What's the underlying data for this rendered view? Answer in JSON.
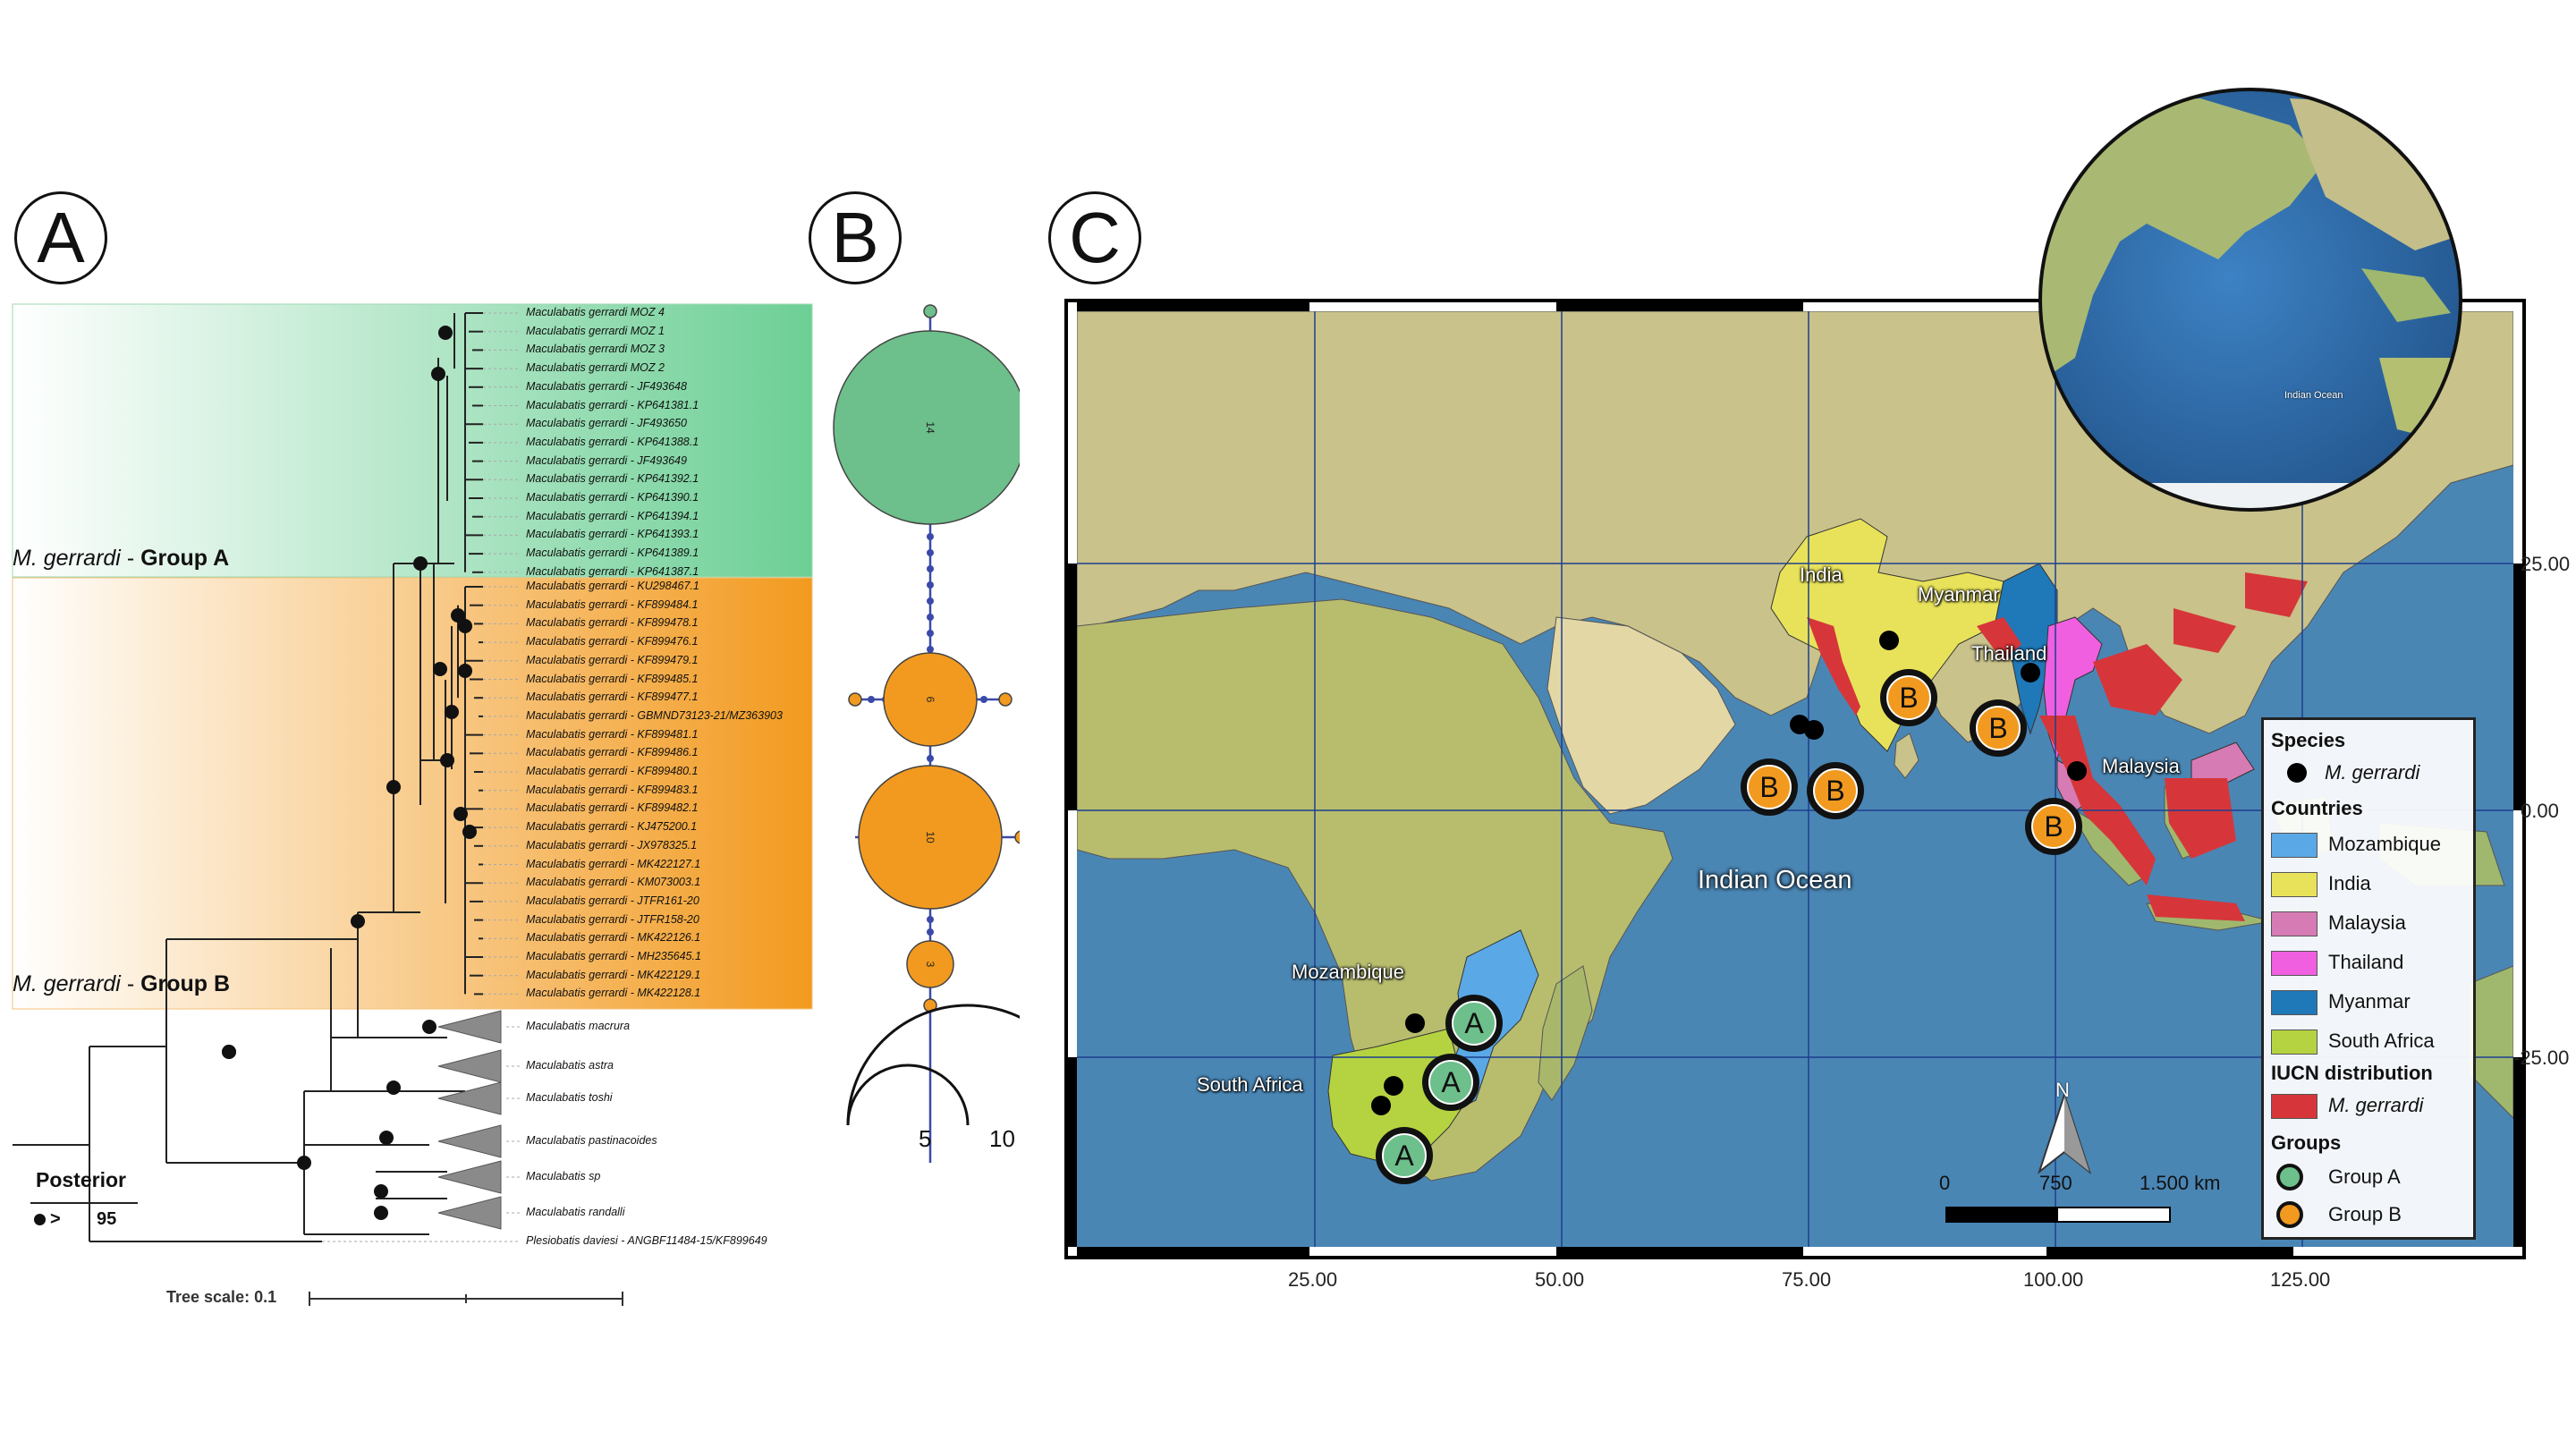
{
  "panels": {
    "a": "A",
    "b": "B",
    "c": "C"
  },
  "tree": {
    "group_a": {
      "species": "M. gerrardi",
      "sep": " - ",
      "name": "Group A"
    },
    "group_b": {
      "species": "M. gerrardi",
      "sep": " - ",
      "name": "Group B"
    },
    "tips_a": [
      "Maculabatis gerrardi MOZ 4",
      "Maculabatis gerrardi MOZ 1",
      "Maculabatis gerrardi MOZ 3",
      "Maculabatis gerrardi MOZ 2",
      "Maculabatis gerrardi - JF493648",
      "Maculabatis gerrardi - KP641381.1",
      "Maculabatis gerrardi - JF493650",
      "Maculabatis gerrardi - KP641388.1",
      "Maculabatis gerrardi - JF493649",
      "Maculabatis gerrardi - KP641392.1",
      "Maculabatis gerrardi - KP641390.1",
      "Maculabatis gerrardi - KP641394.1",
      "Maculabatis gerrardi - KP641393.1",
      "Maculabatis gerrardi - KP641389.1",
      "Maculabatis gerrardi - KP641387.1"
    ],
    "tips_b": [
      "Maculabatis gerrardi - KU298467.1",
      "Maculabatis gerrardi - KF899484.1",
      "Maculabatis gerrardi - KF899478.1",
      "Maculabatis gerrardi - KF899476.1",
      "Maculabatis gerrardi - KF899479.1",
      "Maculabatis gerrardi - KF899485.1",
      "Maculabatis gerrardi - KF899477.1",
      "Maculabatis gerrardi - GBMND73123-21/MZ363903",
      "Maculabatis gerrardi - KF899481.1",
      "Maculabatis gerrardi - KF899486.1",
      "Maculabatis gerrardi - KF899480.1",
      "Maculabatis gerrardi - KF899483.1",
      "Maculabatis gerrardi - KF899482.1",
      "Maculabatis gerrardi - KJ475200.1",
      "Maculabatis gerrardi - JX978325.1",
      "Maculabatis gerrardi - MK422127.1",
      "Maculabatis gerrardi - KM073003.1",
      "Maculabatis gerrardi - JTFR161-20",
      "Maculabatis gerrardi - JTFR158-20",
      "Maculabatis gerrardi - MK422126.1",
      "Maculabatis gerrardi - MH235645.1",
      "Maculabatis gerrardi - MK422129.1",
      "Maculabatis gerrardi - MK422128.1"
    ],
    "clades": [
      "Maculabatis macrura",
      "Maculabatis astra",
      "Maculabatis toshi",
      "Maculabatis pastinacoides",
      "Maculabatis sp",
      "Maculabatis randalli",
      "Plesiobatis daviesi - ANGBF11484-15/KF899649"
    ],
    "posterior_title": "Posterior",
    "posterior_symbol": ">",
    "posterior_value": "95",
    "tree_scale": "Tree scale: 0.1"
  },
  "network": {
    "nodes": [
      {
        "label": "14",
        "color": "#6dbf8b"
      },
      {
        "label": "6",
        "color": "#f29a1f"
      },
      {
        "label": "10",
        "color": "#f29a1f"
      },
      {
        "label": "3",
        "color": "#f29a1f"
      }
    ],
    "scale_labels": [
      "5",
      "10"
    ]
  },
  "map": {
    "ocean_label": "Indian Ocean",
    "inset_label": "Indian Ocean",
    "country_labels": [
      "India",
      "Myanmar",
      "Thailand",
      "Malaysia",
      "Mozambique",
      "South Africa"
    ],
    "y_axis": [
      "25.00",
      "0.00",
      "-25.00"
    ],
    "x_axis": [
      "25.00",
      "50.00",
      "75.00",
      "100.00",
      "125.00"
    ],
    "north": "N",
    "scalebar": [
      "0",
      "750",
      "1.500 km"
    ],
    "markers": [
      {
        "group": "A"
      },
      {
        "group": "A"
      },
      {
        "group": "A"
      },
      {
        "group": "B"
      },
      {
        "group": "B"
      },
      {
        "group": "B"
      },
      {
        "group": "B"
      },
      {
        "group": "B"
      }
    ],
    "legend": {
      "species_title": "Species",
      "species_item": "M. gerrardi",
      "countries_title": "Countries",
      "countries": [
        {
          "name": "Mozambique",
          "color": "#5aa9e6"
        },
        {
          "name": "India",
          "color": "#e8e25a"
        },
        {
          "name": "Malaysia",
          "color": "#d77bb4"
        },
        {
          "name": "Thailand",
          "color": "#ef5fe0"
        },
        {
          "name": "Myanmar",
          "color": "#1f78b8"
        },
        {
          "name": "South Africa",
          "color": "#b5d341"
        }
      ],
      "iucn_title": "IUCN distribution",
      "iucn_item": "M. gerrardi",
      "iucn_color": "#d6363a",
      "groups_title": "Groups",
      "groups": [
        {
          "name": "Group A",
          "color": "#6dbf8b"
        },
        {
          "name": "Group B",
          "color": "#f29a1f"
        }
      ]
    }
  }
}
